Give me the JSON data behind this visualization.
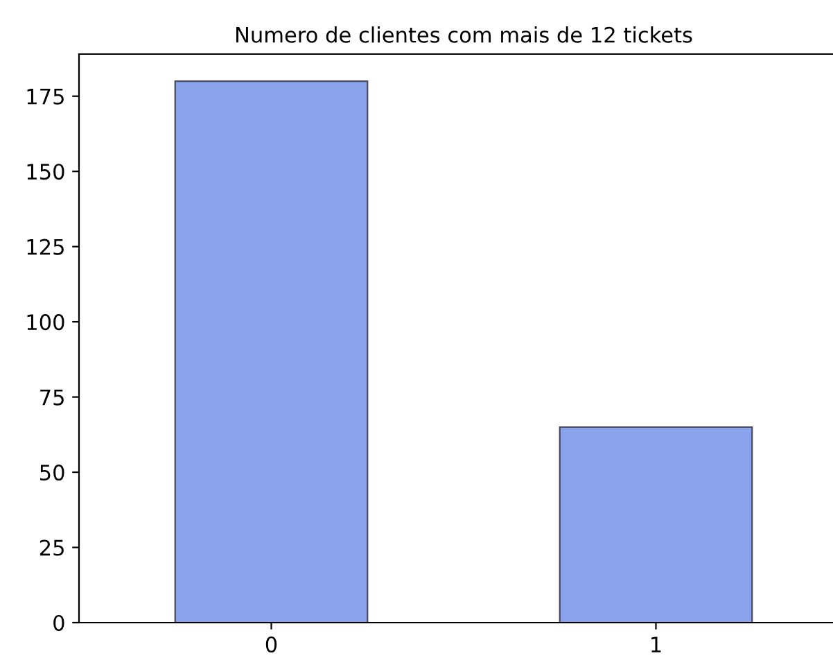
{
  "chart_data": {
    "type": "bar",
    "title": "Numero de clientes com mais de 12 tickets",
    "categories": [
      "0",
      "1"
    ],
    "values": [
      180,
      65
    ],
    "color": "#8ba3ec",
    "ylim": [
      0,
      189
    ],
    "yticks": [
      0,
      25,
      50,
      75,
      100,
      125,
      150,
      175
    ],
    "grid": false
  }
}
